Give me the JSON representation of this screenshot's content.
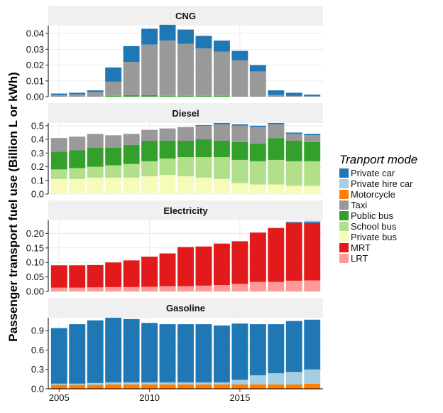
{
  "chart_data": {
    "type": "bar",
    "stacked": true,
    "faceted": true,
    "ylabel": "Passenger transport fuel use (Billion L or kWh)",
    "xlabel": "",
    "x_ticks": [
      2005,
      2010,
      2015
    ],
    "years": [
      2005,
      2006,
      2007,
      2008,
      2009,
      2010,
      2011,
      2012,
      2013,
      2014,
      2015,
      2016,
      2017,
      2018,
      2019
    ],
    "legend": {
      "title": "Tranport mode",
      "position": "right",
      "items": [
        {
          "key": "private_car",
          "label": "Private car",
          "color": "#1f78b4"
        },
        {
          "key": "private_hire_car",
          "label": "Private hire car",
          "color": "#a6cee3"
        },
        {
          "key": "motorcycle",
          "label": "Motorcycle",
          "color": "#ff7f00"
        },
        {
          "key": "taxi",
          "label": "Taxi",
          "color": "#999999"
        },
        {
          "key": "public_bus",
          "label": "Public bus",
          "color": "#33a02c"
        },
        {
          "key": "school_bus",
          "label": "School bus",
          "color": "#b2df8a"
        },
        {
          "key": "private_bus",
          "label": "Private bus",
          "color": "#f7fbb9"
        },
        {
          "key": "mrt",
          "label": "MRT",
          "color": "#e31a1c"
        },
        {
          "key": "lrt",
          "label": "LRT",
          "color": "#fb9a99"
        }
      ]
    },
    "panels": [
      {
        "title": "CNG",
        "ylim": [
          0,
          0.045
        ],
        "yticks": [
          0.0,
          0.01,
          0.02,
          0.03,
          0.04
        ],
        "ytick_labels": [
          "0.00",
          "0.01",
          "0.02",
          "0.03",
          "0.04"
        ],
        "series": [
          {
            "key": "public_bus",
            "values": [
              0,
              0,
              0,
              0.0005,
              0.001,
              0.001,
              0.0005,
              0.0005,
              0.0005,
              0.0005,
              0,
              0,
              0,
              0,
              0
            ]
          },
          {
            "key": "taxi",
            "values": [
              0.001,
              0.0015,
              0.003,
              0.009,
              0.021,
              0.032,
              0.035,
              0.033,
              0.03,
              0.028,
              0.023,
              0.016,
              0.001,
              0.0005,
              0.0003
            ]
          },
          {
            "key": "private_car",
            "values": [
              0.001,
              0.001,
              0.001,
              0.009,
              0.01,
              0.01,
              0.01,
              0.009,
              0.008,
              0.007,
              0.006,
              0.004,
              0.003,
              0.002,
              0.001
            ]
          }
        ]
      },
      {
        "title": "Diesel",
        "ylim": [
          0,
          0.52
        ],
        "yticks": [
          0.0,
          0.1,
          0.2,
          0.3,
          0.4,
          0.5
        ],
        "ytick_labels": [
          "0.0",
          "0.1",
          "0.2",
          "0.3",
          "0.4",
          "0.5"
        ],
        "series": [
          {
            "key": "private_bus",
            "values": [
              0.11,
              0.11,
              0.12,
              0.12,
              0.12,
              0.13,
              0.14,
              0.13,
              0.12,
              0.11,
              0.08,
              0.07,
              0.07,
              0.06,
              0.06
            ]
          },
          {
            "key": "school_bus",
            "values": [
              0.07,
              0.08,
              0.08,
              0.09,
              0.1,
              0.11,
              0.12,
              0.14,
              0.15,
              0.16,
              0.17,
              0.17,
              0.18,
              0.18,
              0.18
            ]
          },
          {
            "key": "public_bus",
            "values": [
              0.13,
              0.13,
              0.14,
              0.13,
              0.14,
              0.15,
              0.13,
              0.12,
              0.13,
              0.12,
              0.13,
              0.13,
              0.16,
              0.15,
              0.14
            ]
          },
          {
            "key": "taxi",
            "values": [
              0.1,
              0.1,
              0.1,
              0.09,
              0.08,
              0.08,
              0.09,
              0.1,
              0.1,
              0.12,
              0.12,
              0.12,
              0.1,
              0.05,
              0.05
            ]
          },
          {
            "key": "private_car",
            "values": [
              0,
              0,
              0,
              0,
              0,
              0,
              0,
              0,
              0.005,
              0.01,
              0.01,
              0.01,
              0.01,
              0.01,
              0.01
            ]
          }
        ]
      },
      {
        "title": "Electricity",
        "ylim": [
          0,
          0.245
        ],
        "yticks": [
          0.0,
          0.05,
          0.1,
          0.15,
          0.2
        ],
        "ytick_labels": [
          "0.00",
          "0.05",
          "0.10",
          "0.15",
          "0.20"
        ],
        "series": [
          {
            "key": "lrt",
            "values": [
              0.013,
              0.013,
              0.014,
              0.015,
              0.015,
              0.016,
              0.018,
              0.018,
              0.02,
              0.022,
              0.026,
              0.033,
              0.033,
              0.037,
              0.038
            ]
          },
          {
            "key": "mrt",
            "values": [
              0.077,
              0.077,
              0.077,
              0.085,
              0.092,
              0.104,
              0.113,
              0.135,
              0.135,
              0.143,
              0.147,
              0.17,
              0.185,
              0.2,
              0.198
            ]
          },
          {
            "key": "private_car",
            "values": [
              0,
              0,
              0,
              0,
              0,
              0,
              0,
              0,
              0,
              0,
              0,
              0,
              0,
              0.002,
              0.004
            ]
          },
          {
            "key": "private_hire_car",
            "values": [
              0,
              0,
              0,
              0,
              0,
              0,
              0,
              0,
              0,
              0,
              0,
              0,
              0.002,
              0.002,
              0.004
            ]
          }
        ]
      },
      {
        "title": "Gasoline",
        "ylim": [
          0,
          1.1
        ],
        "yticks": [
          0.0,
          0.3,
          0.6,
          0.9
        ],
        "ytick_labels": [
          "0.0",
          "0.3",
          "0.6",
          "0.9"
        ],
        "series": [
          {
            "key": "motorcycle",
            "values": [
              0.06,
              0.06,
              0.06,
              0.07,
              0.07,
              0.07,
              0.07,
              0.07,
              0.07,
              0.07,
              0.07,
              0.07,
              0.07,
              0.07,
              0.08
            ]
          },
          {
            "key": "private_hire_car",
            "values": [
              0.02,
              0.02,
              0.03,
              0.03,
              0.03,
              0.03,
              0.03,
              0.03,
              0.03,
              0.03,
              0.07,
              0.14,
              0.17,
              0.19,
              0.22
            ]
          },
          {
            "key": "private_car",
            "values": [
              0.86,
              0.92,
              0.97,
              1.0,
              0.98,
              0.92,
              0.9,
              0.9,
              0.9,
              0.88,
              0.87,
              0.79,
              0.76,
              0.79,
              0.77
            ]
          }
        ]
      }
    ]
  }
}
